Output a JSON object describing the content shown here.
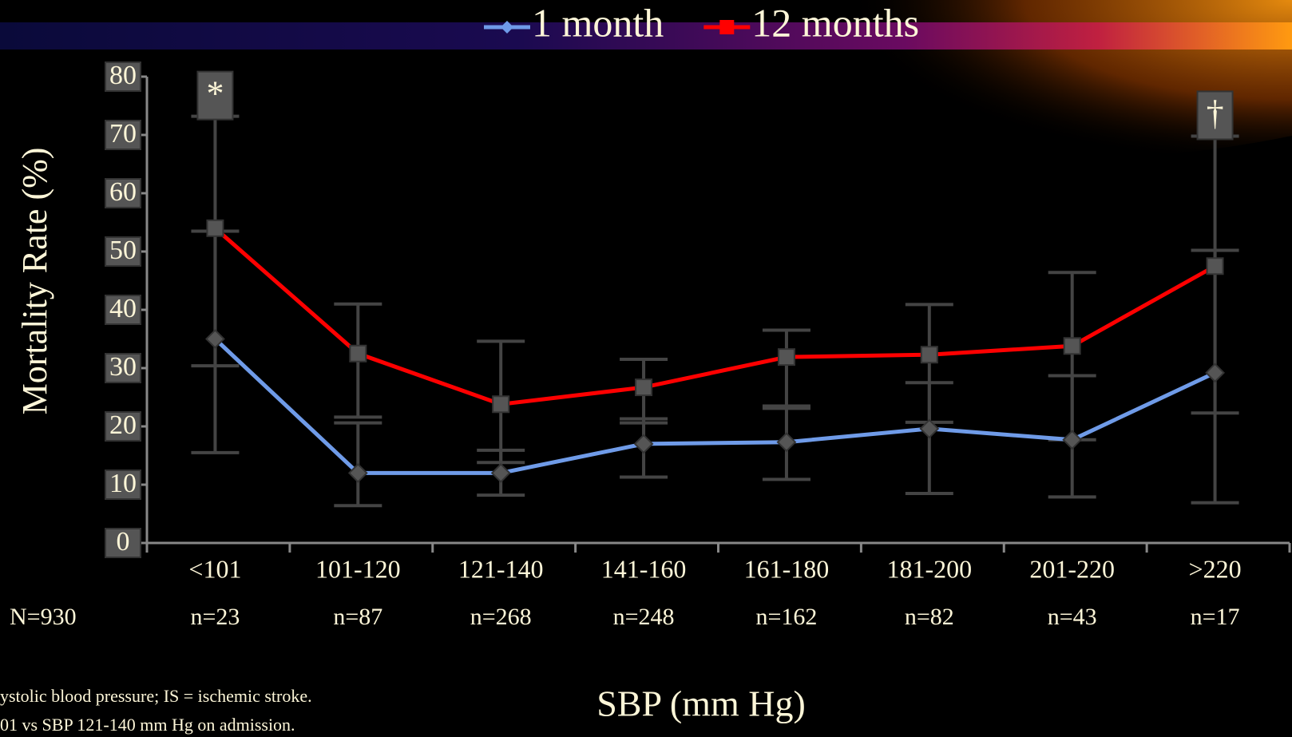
{
  "chart_data": {
    "type": "line",
    "y_label": "Mortality Rate (%)",
    "x_label": "SBP (mm Hg)",
    "categories": [
      "<101",
      "101-120",
      "121-140",
      "141-160",
      "161-180",
      "181-200",
      "201-220",
      ">220"
    ],
    "sample_sizes": [
      "n=23",
      "n=87",
      "n=268",
      "n=248",
      "n=162",
      "n=82",
      "n=43",
      "n=17"
    ],
    "total_n": "N=930",
    "annotations": [
      "*",
      "†"
    ],
    "footnotes": [
      "ystolic blood pressure; IS = ischemic stroke.",
      "01 vs SBP 121-140 mm Hg on admission."
    ],
    "ylim": [
      0,
      80
    ],
    "yticks": [
      0,
      10,
      20,
      30,
      40,
      50,
      60,
      70,
      80
    ],
    "series": [
      {
        "name": "1 month",
        "color": "#6f9be8",
        "marker": "diamond",
        "values": [
          35,
          12,
          12,
          17,
          17.3,
          19.6,
          17.7,
          29.2
        ],
        "lower": [
          15.5,
          6.4,
          8.2,
          11.3,
          10.9,
          8.5,
          7.9,
          6.9
        ],
        "upper": [
          53.5,
          20.6,
          15.9,
          21.3,
          23.5,
          27.5,
          28.7,
          50.2
        ]
      },
      {
        "name": "12 months",
        "color": "#ff0000",
        "marker": "square",
        "values": [
          54,
          32.5,
          23.8,
          26.7,
          31.9,
          32.3,
          33.8,
          47.5
        ],
        "lower": [
          30.4,
          21.6,
          13.8,
          20.6,
          23.1,
          20.7,
          17.7,
          22.3
        ],
        "upper": [
          73.2,
          41,
          34.6,
          31.5,
          36.5,
          40.9,
          46.4,
          69.8
        ]
      }
    ]
  }
}
